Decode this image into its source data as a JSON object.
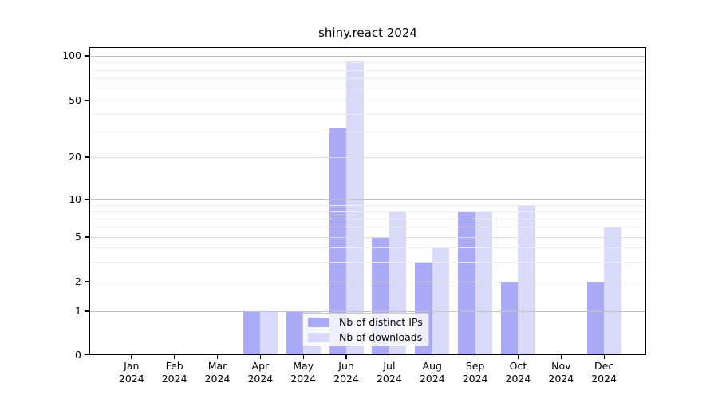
{
  "title": "shiny.react 2024",
  "chart_data": {
    "type": "bar",
    "title": "shiny.react 2024",
    "categories": [
      "Jan",
      "Feb",
      "Mar",
      "Apr",
      "May",
      "Jun",
      "Jul",
      "Aug",
      "Sep",
      "Oct",
      "Nov",
      "Dec"
    ],
    "x_axis": {
      "year_label": "2024"
    },
    "y_axis": {
      "scale": "log-like",
      "tick_values": [
        0,
        1,
        2,
        5,
        10,
        20,
        50,
        100
      ],
      "tick_labels": [
        "0",
        "1",
        "2",
        "5",
        "10",
        "20",
        "50",
        "100"
      ],
      "minor_tick_values": [
        3,
        4,
        6,
        7,
        8,
        9,
        30,
        40,
        60,
        70,
        80,
        90
      ],
      "range": [
        0,
        115
      ]
    },
    "series": [
      {
        "name": "Nb of distinct IPs",
        "key": "distinct-ips",
        "color": "#aaaaf6",
        "values": [
          0,
          0,
          0,
          1,
          1,
          32,
          5,
          3,
          8,
          2,
          0,
          2
        ]
      },
      {
        "name": "Nb of downloads",
        "key": "downloads",
        "color": "#d9d9f9",
        "values": [
          0,
          0,
          0,
          1,
          1,
          92,
          8,
          4,
          8,
          9,
          0,
          6
        ]
      }
    ],
    "legend": {
      "position": "lower center-left",
      "entries": [
        "Nb of distinct IPs",
        "Nb of downloads"
      ]
    },
    "grid": {
      "major": true,
      "minor": true,
      "grid_above_bars": true
    }
  },
  "colors": {
    "bar_distinct_ips": "#aaaaf6",
    "bar_downloads": "#d9d9f9",
    "grid_decade": "#c2c2c2",
    "grid_major": "#dcdcdc",
    "grid_minor": "#eeeeee",
    "axis": "#000000",
    "background": "#ffffff"
  }
}
